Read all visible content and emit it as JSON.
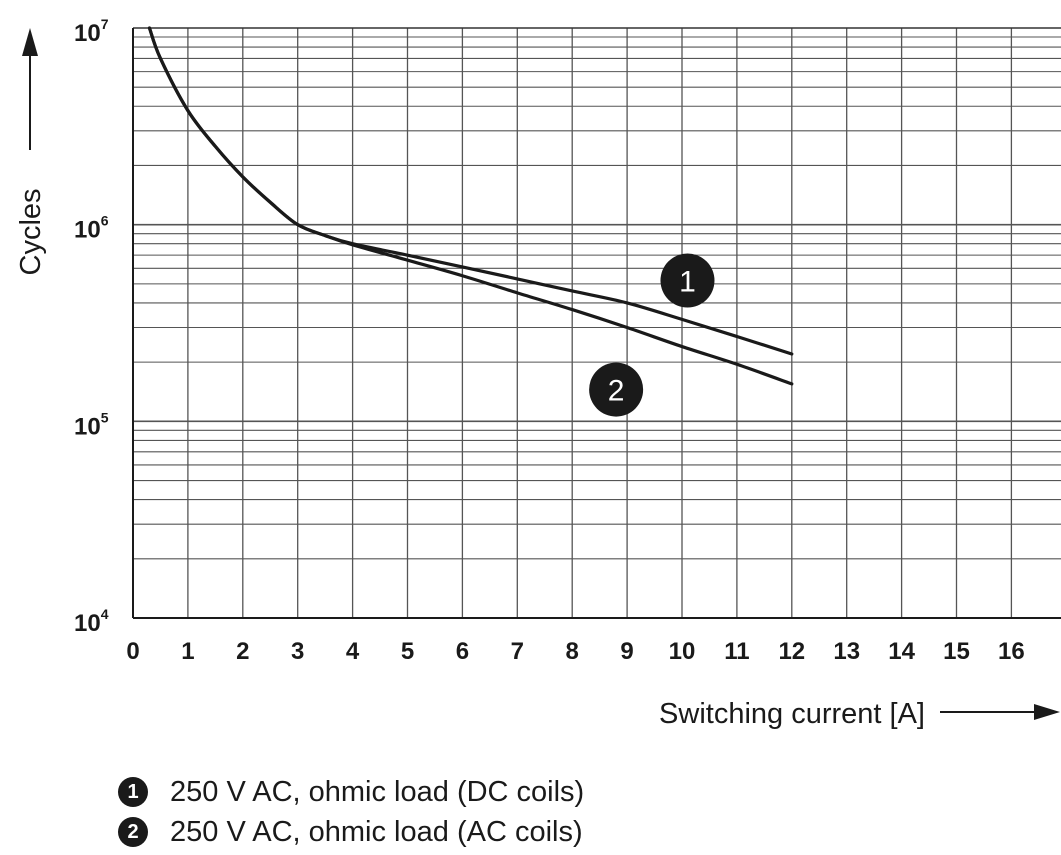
{
  "chart_data": {
    "type": "line",
    "title": "",
    "xlabel": "Switching current [A]",
    "ylabel": "Cycles",
    "x_ticks": [
      "0",
      "1",
      "2",
      "3",
      "4",
      "5",
      "6",
      "7",
      "8",
      "9",
      "10",
      "11",
      "12",
      "13",
      "14",
      "15",
      "16"
    ],
    "xlim": [
      0,
      16.9
    ],
    "y_scale": "log",
    "ylim": [
      10000,
      10000000
    ],
    "y_ticks": [
      {
        "base": "10",
        "exp": "7"
      },
      {
        "base": "10",
        "exp": "6"
      },
      {
        "base": "10",
        "exp": "5"
      },
      {
        "base": "10",
        "exp": "4"
      }
    ],
    "grid": true,
    "series": [
      {
        "marker": "1",
        "name": "250 V AC, ohmic load (DC coils)",
        "x": [
          0.3,
          0.5,
          1,
          1.5,
          2,
          2.5,
          3,
          3.5,
          4,
          5,
          6,
          7,
          8,
          9,
          10,
          11,
          12
        ],
        "y": [
          10000000,
          7000000,
          3800000,
          2500000,
          1750000,
          1300000,
          1000000,
          880000,
          800000,
          700000,
          610000,
          530000,
          460000,
          400000,
          330000,
          270000,
          220000
        ]
      },
      {
        "marker": "2",
        "name": "250 V AC, ohmic load (AC coils)",
        "x": [
          0.3,
          0.5,
          1,
          1.5,
          2,
          2.5,
          3,
          3.5,
          4,
          5,
          6,
          7,
          8,
          9,
          10,
          11,
          12
        ],
        "y": [
          10000000,
          7000000,
          3800000,
          2500000,
          1750000,
          1300000,
          1000000,
          880000,
          790000,
          660000,
          550000,
          450000,
          370000,
          300000,
          240000,
          195000,
          155000
        ]
      }
    ],
    "legend_position": "bottom-left"
  }
}
